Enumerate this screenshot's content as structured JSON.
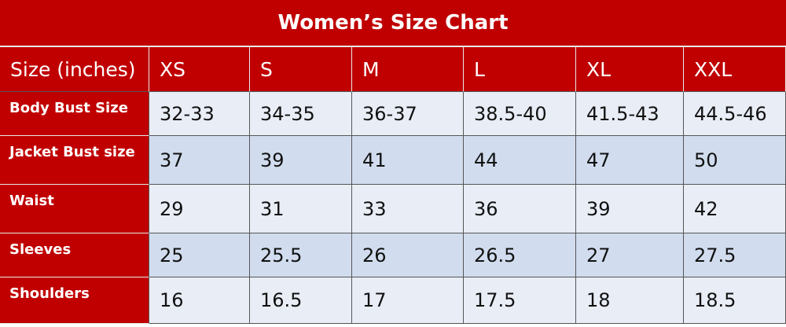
{
  "table": {
    "title": "Women’s Size Chart",
    "header": [
      "Size (inches)",
      "XS",
      "S",
      "M",
      "L",
      "XL",
      "XXL"
    ],
    "rows": [
      [
        "Body Bust Size",
        "32-33",
        "34-35",
        "36-37",
        "38.5-40",
        "41.5-43",
        "44.5-46"
      ],
      [
        "Jacket Bust size",
        "37",
        "39",
        "41",
        "44",
        "47",
        "50"
      ],
      [
        "Waist",
        "29",
        "31",
        "33",
        "36",
        "39",
        "42"
      ],
      [
        "Sleeves",
        "25",
        "25.5",
        "26",
        "26.5",
        "27",
        "27.5"
      ],
      [
        "Shoulders",
        "16",
        "16.5",
        "17",
        "17.5",
        "18",
        "18.5"
      ]
    ]
  }
}
